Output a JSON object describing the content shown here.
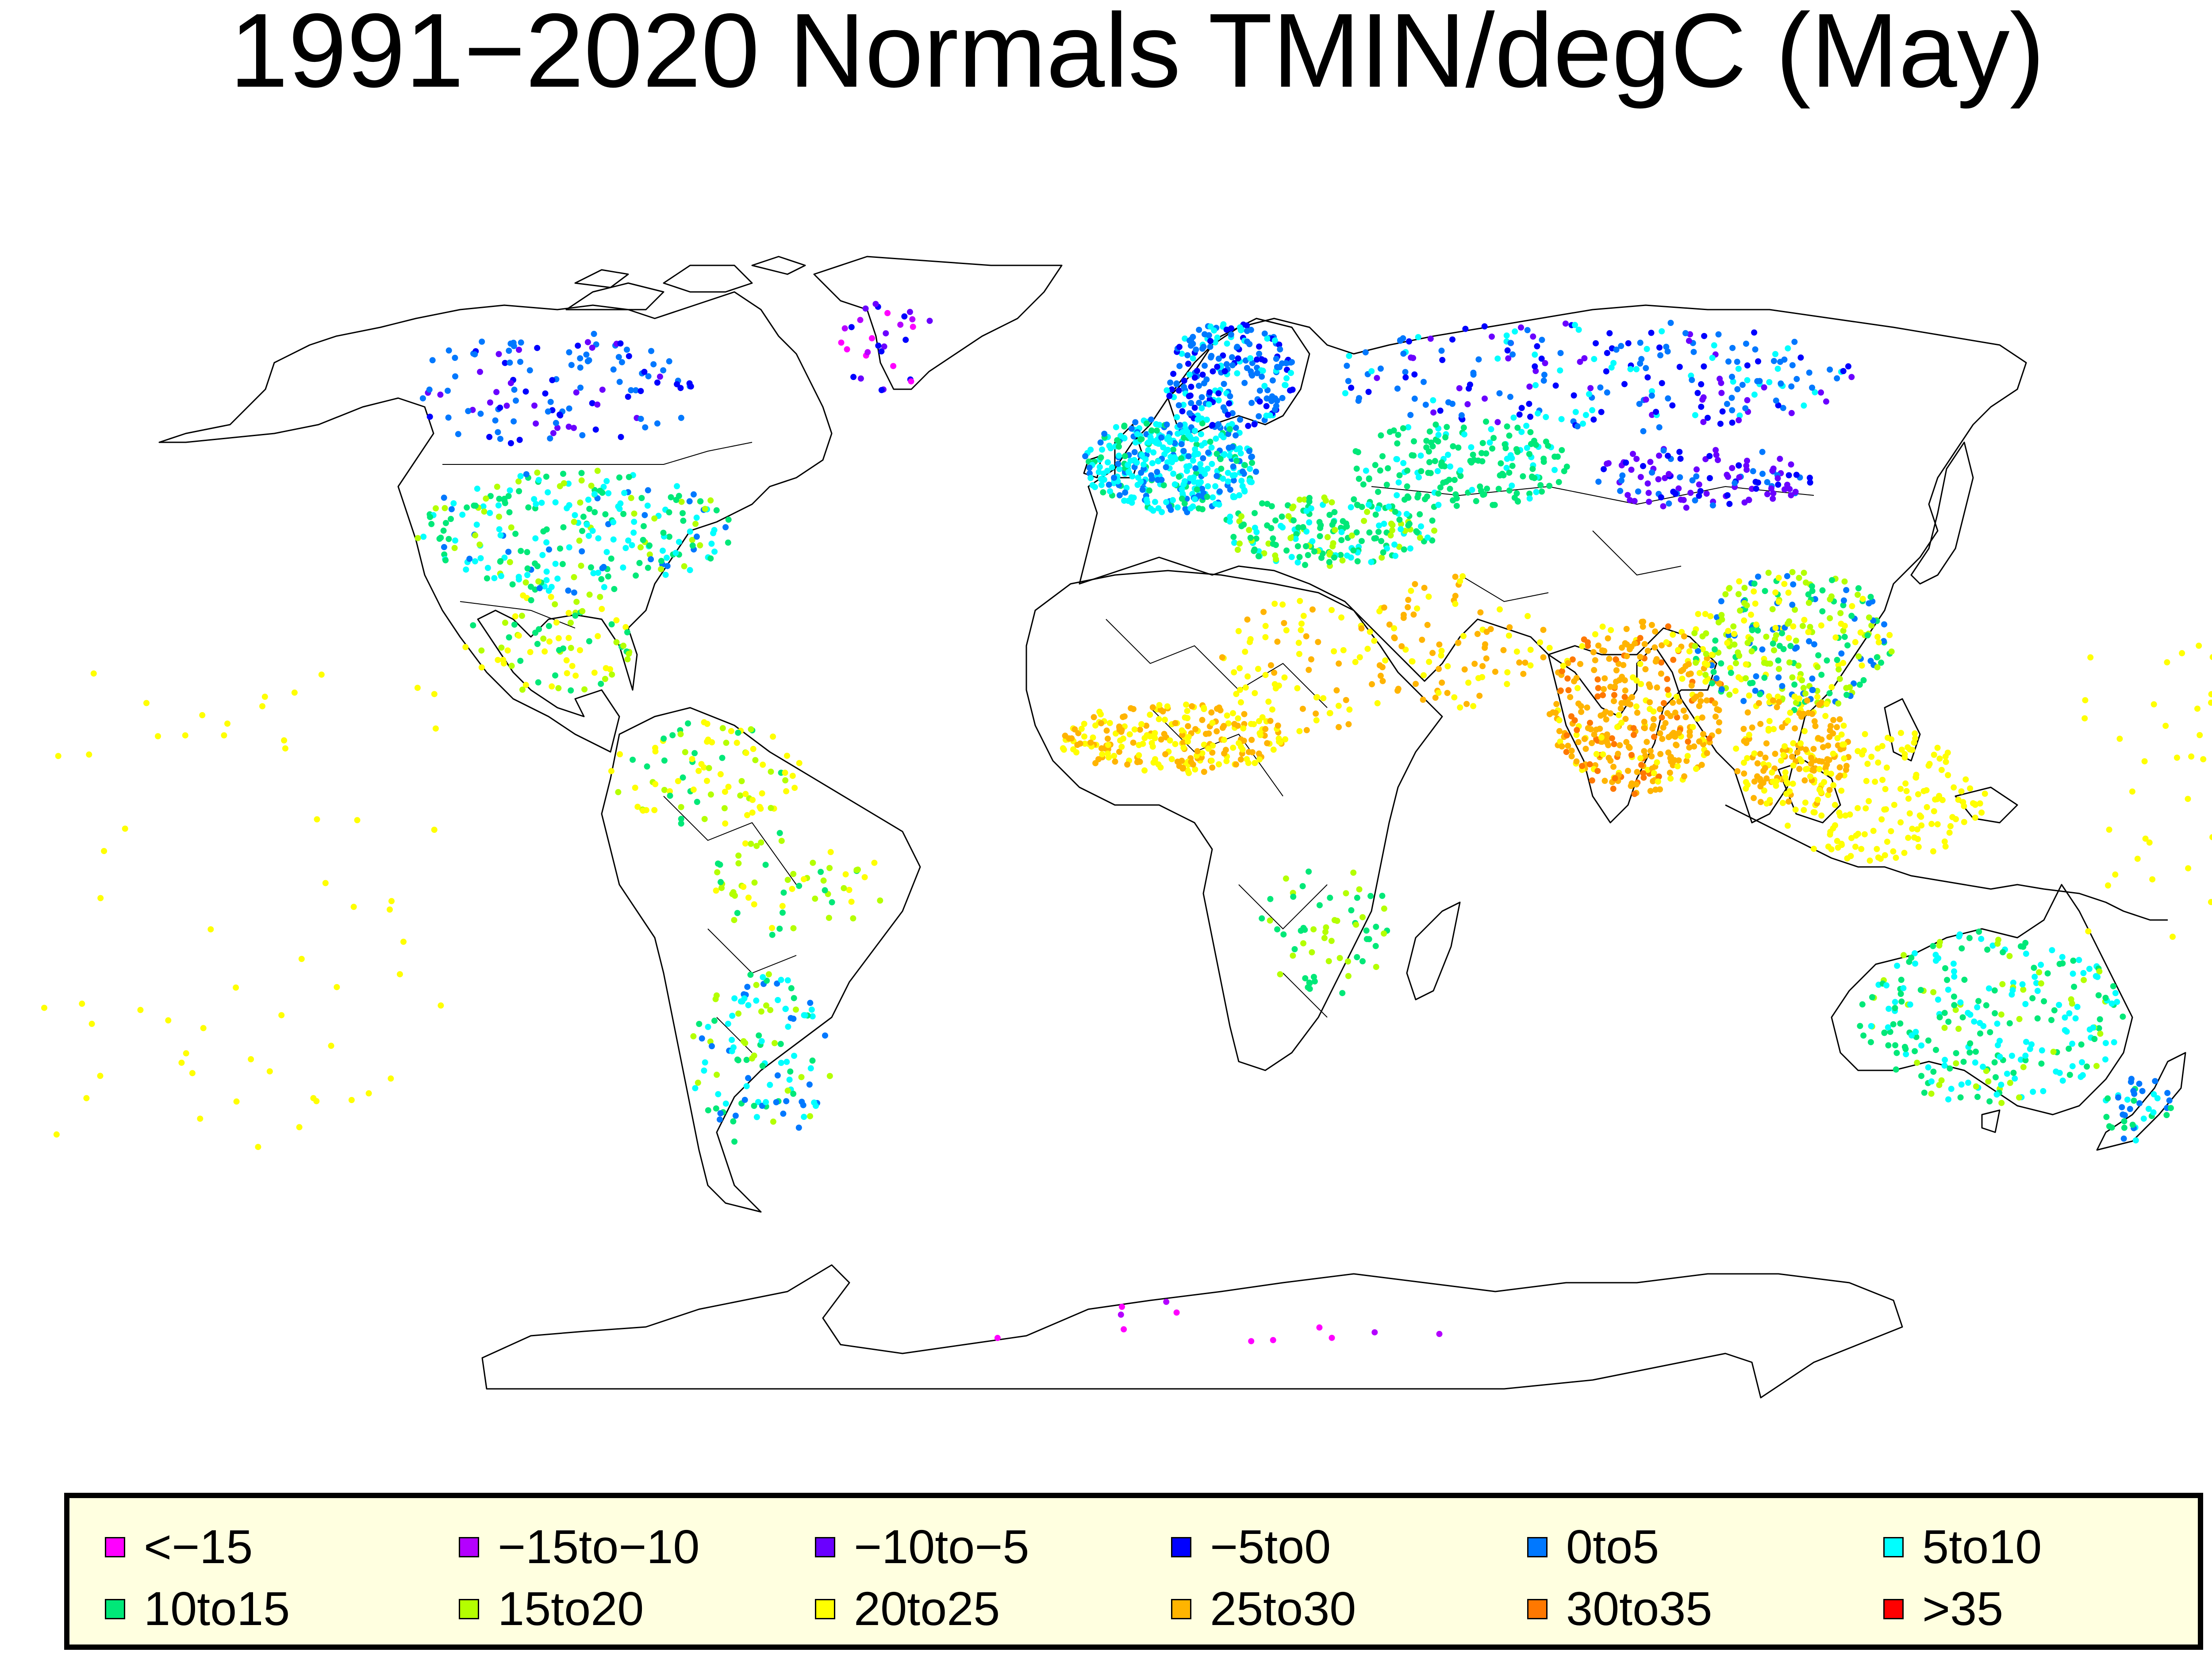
{
  "title": "1991−2020 Normals TMIN/degC  (May)",
  "legend": {
    "items": [
      {
        "label": "<−15",
        "color": "#ff00ff"
      },
      {
        "label": "−15to−10",
        "color": "#b400ff"
      },
      {
        "label": "−10to−5",
        "color": "#6a00ff"
      },
      {
        "label": "−5to0",
        "color": "#0000ff"
      },
      {
        "label": "0to5",
        "color": "#0078ff"
      },
      {
        "label": "5to10",
        "color": "#00ffff"
      },
      {
        "label": "10to15",
        "color": "#00e878"
      },
      {
        "label": "15to20",
        "color": "#b4ff00"
      },
      {
        "label": "20to25",
        "color": "#ffff00"
      },
      {
        "label": "25to30",
        "color": "#ffb400"
      },
      {
        "label": "30to35",
        "color": "#ff7800"
      },
      {
        "label": ">35",
        "color": "#ff0000"
      }
    ]
  },
  "map": {
    "projection": "Robinson-like world projection",
    "coastline_color": "#000000",
    "background": "#ffffff"
  }
}
